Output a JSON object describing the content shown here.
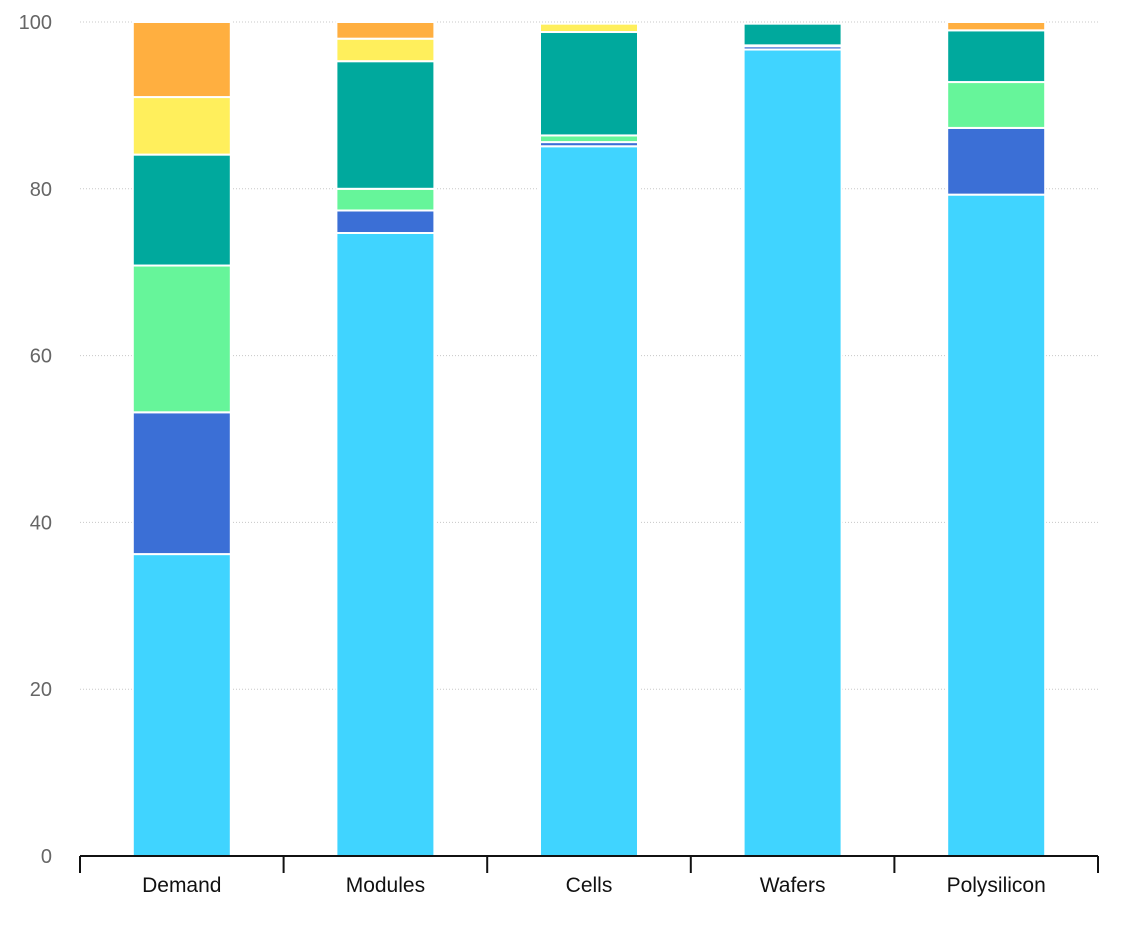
{
  "chart_data": {
    "type": "bar",
    "stacked": true,
    "categories": [
      "Demand",
      "Modules",
      "Cells",
      "Wafers",
      "Polysilicon"
    ],
    "series": [
      {
        "color": "#40d4ff",
        "values": [
          36.2,
          74.7,
          85.1,
          96.7,
          79.3
        ]
      },
      {
        "color": "#3b6fd6",
        "values": [
          17.0,
          2.7,
          0.5,
          0.4,
          8.0
        ]
      },
      {
        "color": "#66f59a",
        "values": [
          17.6,
          2.6,
          0.8,
          0.1,
          5.5
        ]
      },
      {
        "color": "#00a99d",
        "values": [
          13.3,
          15.3,
          12.4,
          2.6,
          6.2
        ]
      },
      {
        "color": "#ffef5c",
        "values": [
          6.9,
          2.7,
          1.0,
          0.0,
          0.0
        ]
      },
      {
        "color": "#ffaf40",
        "values": [
          9.0,
          2.0,
          0.0,
          0.0,
          1.0
        ]
      }
    ],
    "ylim": [
      0,
      100
    ],
    "yticks": [
      0,
      20,
      40,
      60,
      80,
      100
    ],
    "grid": true,
    "legend": "none"
  }
}
